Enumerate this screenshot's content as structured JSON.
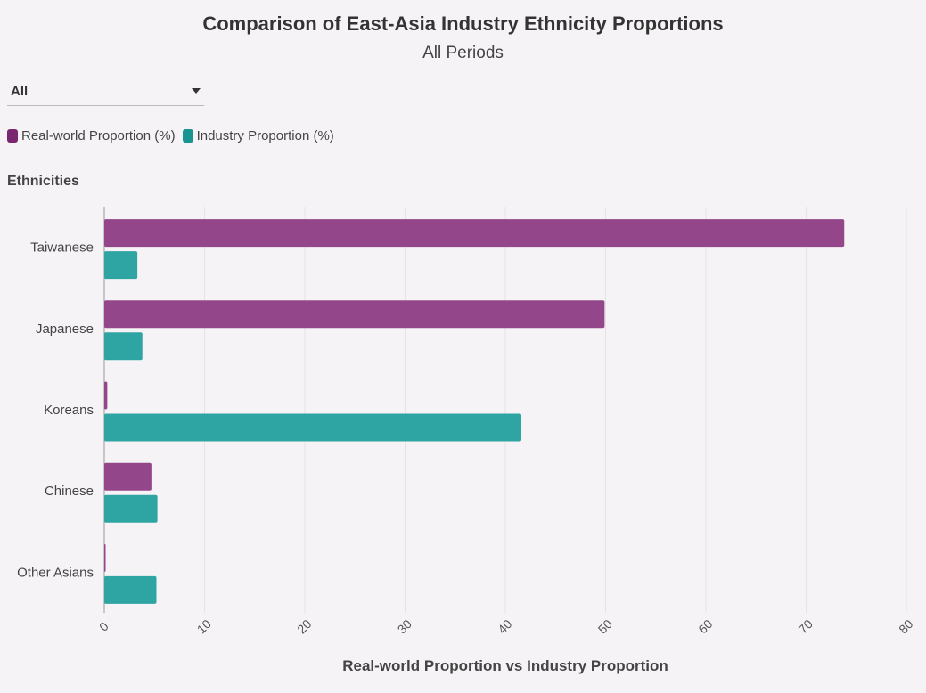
{
  "title": "Comparison of East-Asia Industry Ethnicity Proportions",
  "subtitle": "All Periods",
  "filter": {
    "selected": "All"
  },
  "legend": [
    {
      "label": "Real-world Proportion (%)",
      "color": "#7b2670",
      "icon": "rounded-square"
    },
    {
      "label": "Industry Proportion (%)",
      "color": "#1a9490",
      "icon": "rounded-square"
    }
  ],
  "chart_data": {
    "type": "bar",
    "orientation": "horizontal",
    "title": "Comparison of East-Asia Industry Ethnicity Proportions",
    "subtitle": "All Periods",
    "ylabel": "Ethnicities",
    "xlabel": "Real-world Proportion vs Industry Proportion",
    "categories": [
      "Taiwanese",
      "Japanese",
      "Koreans",
      "Chinese",
      "Other Asians"
    ],
    "series": [
      {
        "name": "Real-world Proportion (%)",
        "color": "#93468a",
        "values": [
          73.8,
          49.9,
          0.3,
          4.7,
          0.1
        ]
      },
      {
        "name": "Industry Proportion (%)",
        "color": "#2fa5a3",
        "values": [
          3.3,
          3.8,
          41.6,
          5.3,
          5.2
        ]
      }
    ],
    "xlim": [
      0,
      80
    ],
    "xticks": [
      0,
      10,
      20,
      30,
      40,
      50,
      60,
      70,
      80
    ],
    "grid": true,
    "legend_position": "top-left"
  }
}
